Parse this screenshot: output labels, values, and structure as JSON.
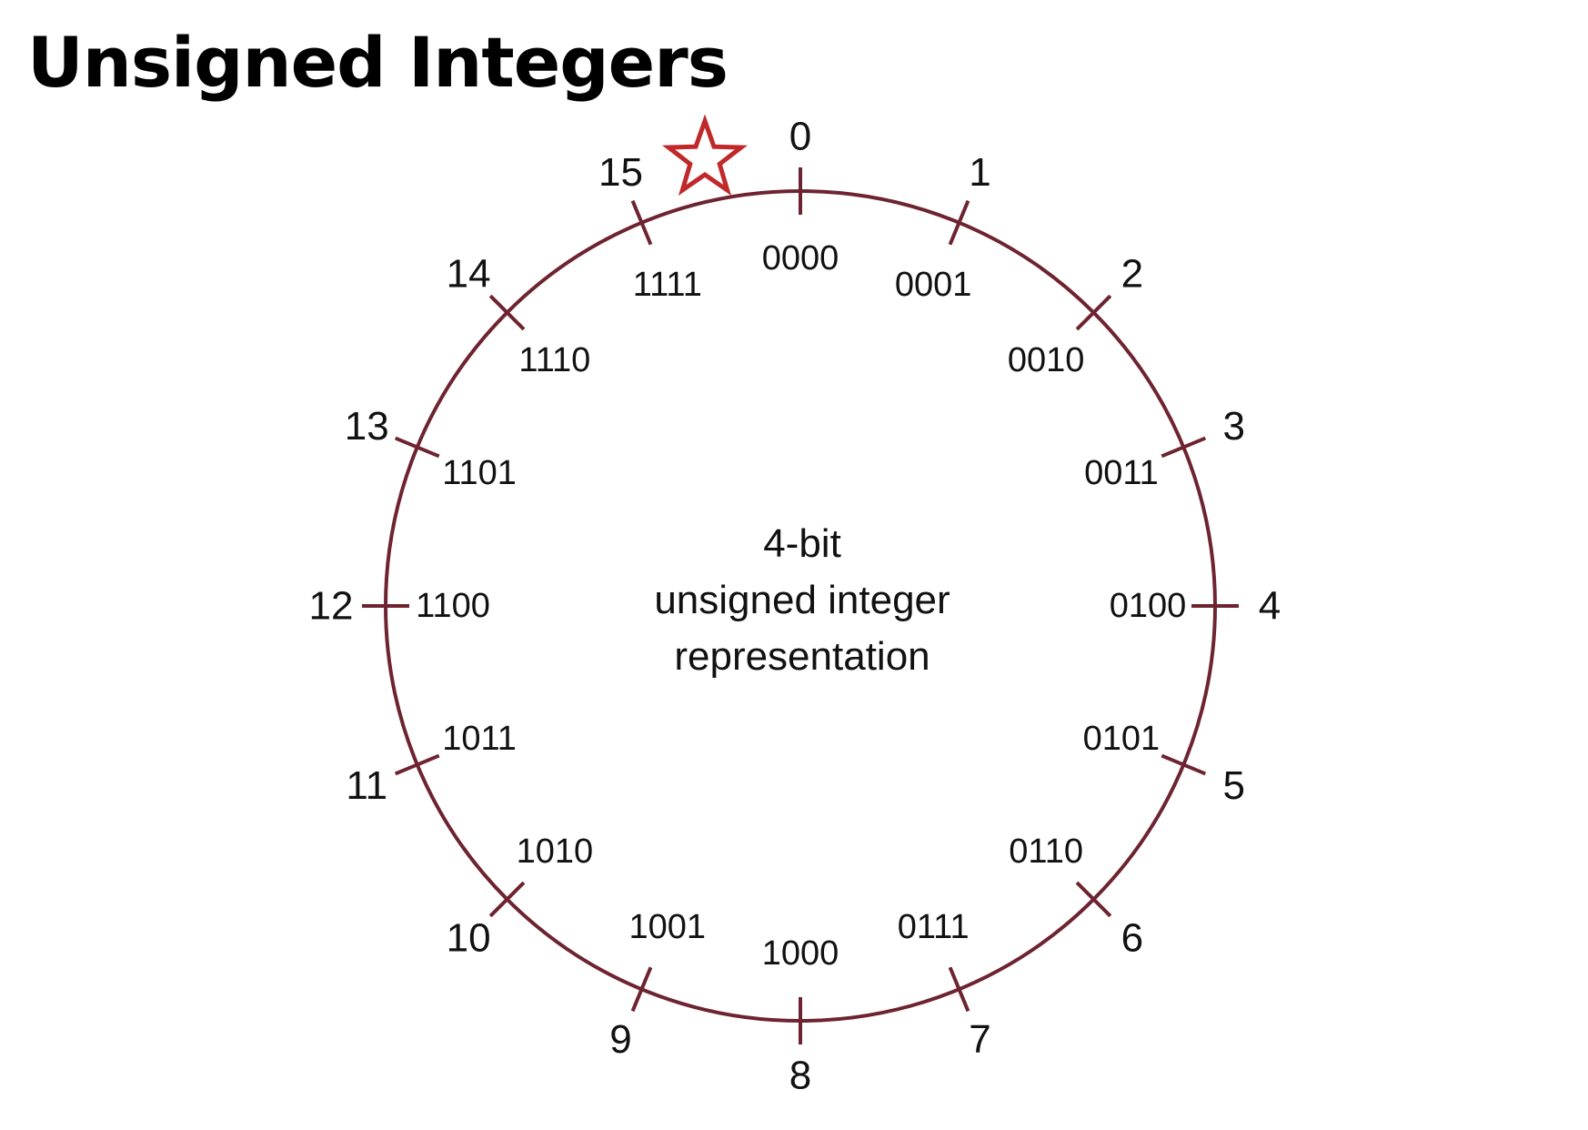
{
  "title": "Unsigned Integers",
  "center_caption": [
    "4-bit",
    "unsigned integer",
    "representation"
  ],
  "colors": {
    "circle": "#6e2430",
    "star": "#c0282a",
    "text": "#111111"
  },
  "marker_icon": "star-icon",
  "positions": [
    {
      "value": "0",
      "binary": "0000"
    },
    {
      "value": "1",
      "binary": "0001"
    },
    {
      "value": "2",
      "binary": "0010"
    },
    {
      "value": "3",
      "binary": "0011"
    },
    {
      "value": "4",
      "binary": "0100"
    },
    {
      "value": "5",
      "binary": "0101"
    },
    {
      "value": "6",
      "binary": "0110"
    },
    {
      "value": "7",
      "binary": "0111"
    },
    {
      "value": "8",
      "binary": "1000"
    },
    {
      "value": "9",
      "binary": "1001"
    },
    {
      "value": "10",
      "binary": "1010"
    },
    {
      "value": "11",
      "binary": "1011"
    },
    {
      "value": "12",
      "binary": "1100"
    },
    {
      "value": "13",
      "binary": "1101"
    },
    {
      "value": "14",
      "binary": "1110"
    },
    {
      "value": "15",
      "binary": "1111"
    }
  ]
}
